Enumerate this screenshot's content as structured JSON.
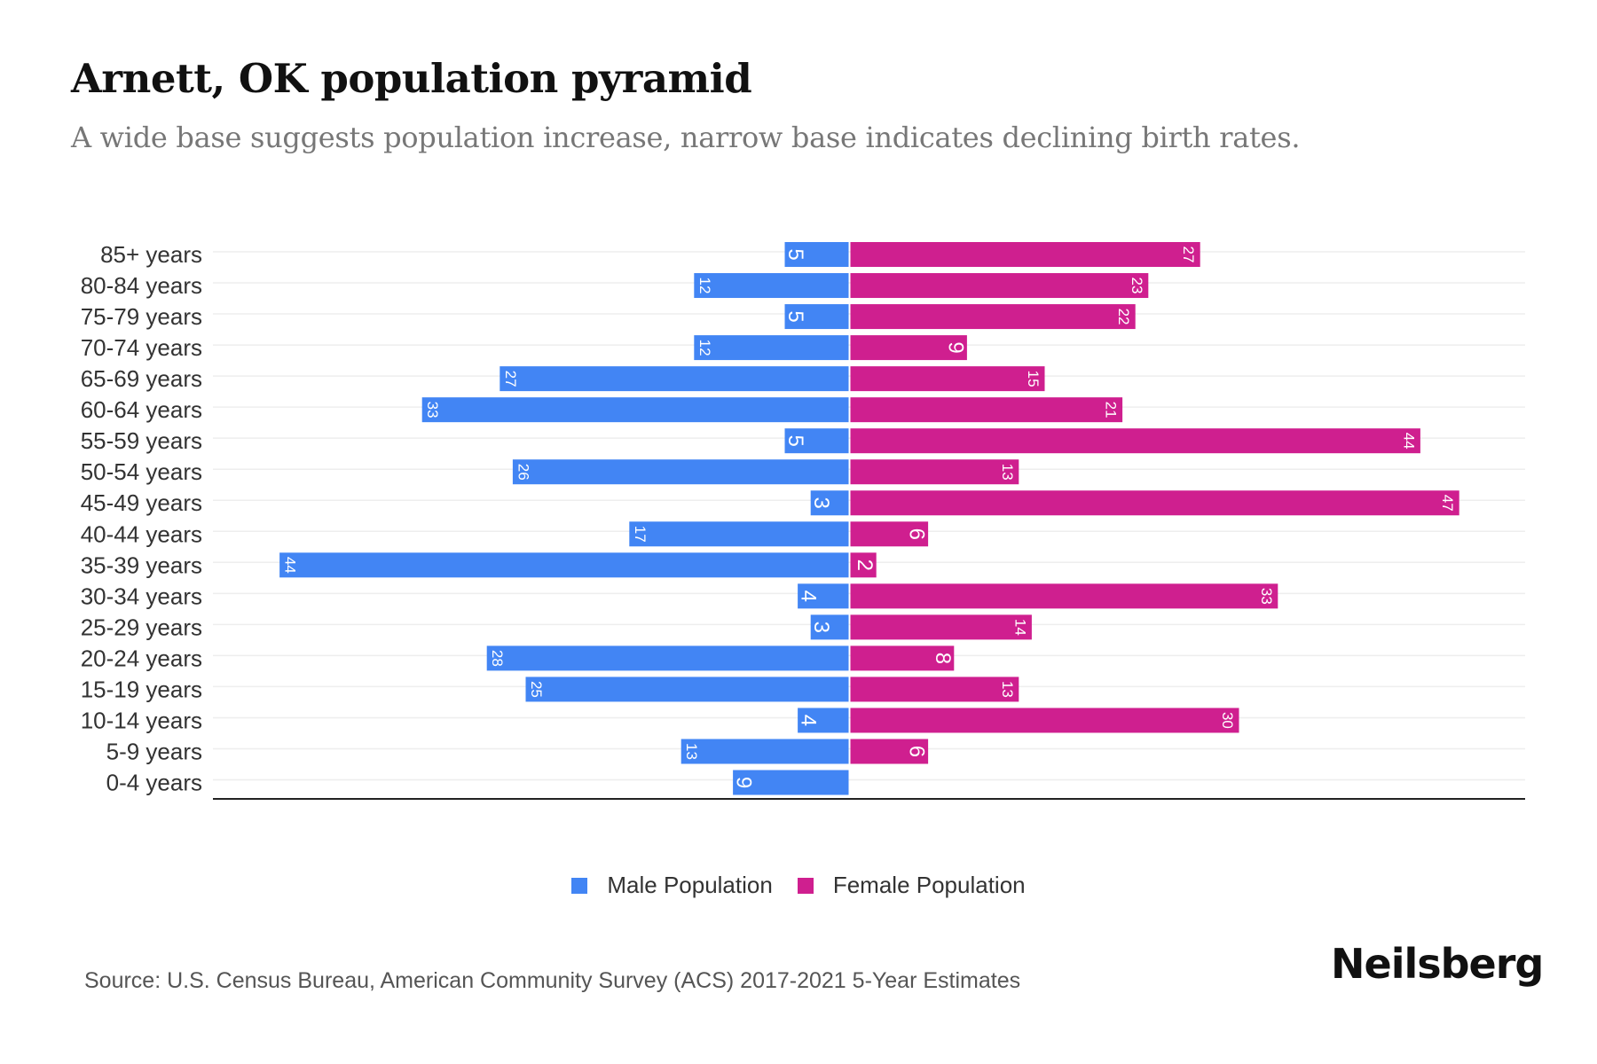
{
  "header": {
    "title": "Arnett, OK population pyramid",
    "subtitle": "A wide base suggests population increase, narrow base indicates declining birth rates."
  },
  "legend": {
    "male_label": "Male Population",
    "female_label": "Female Population"
  },
  "footer": {
    "source": "Source: U.S. Census Bureau, American Community Survey (ACS) 2017-2021 5-Year Estimates",
    "brand": "Neilsberg"
  },
  "colors": {
    "male": "#4285F4",
    "female": "#CF1F8F",
    "grid": "#EEEEEE",
    "axis": "#222222",
    "label": "#333333"
  },
  "chart_data": {
    "type": "bar",
    "orientation": "horizontal-diverging",
    "title": "Arnett, OK population pyramid",
    "subtitle": "A wide base suggests population increase, narrow base indicates declining birth rates.",
    "xlabel": "",
    "ylabel": "",
    "legend_position": "bottom-center",
    "grid": true,
    "categories": [
      "85+ years",
      "80-84 years",
      "75-79 years",
      "70-74 years",
      "65-69 years",
      "60-64 years",
      "55-59 years",
      "50-54 years",
      "45-49 years",
      "40-44 years",
      "35-39 years",
      "30-34 years",
      "25-29 years",
      "20-24 years",
      "15-19 years",
      "10-14 years",
      "5-9 years",
      "0-4 years"
    ],
    "series": [
      {
        "name": "Male Population",
        "values": [
          5,
          12,
          5,
          12,
          27,
          33,
          5,
          26,
          3,
          17,
          44,
          4,
          3,
          28,
          25,
          4,
          13,
          9
        ]
      },
      {
        "name": "Female Population",
        "values": [
          27,
          23,
          22,
          9,
          15,
          21,
          44,
          13,
          47,
          6,
          2,
          33,
          14,
          8,
          13,
          30,
          6,
          0
        ]
      }
    ],
    "xlim": [
      -49,
      52
    ]
  }
}
